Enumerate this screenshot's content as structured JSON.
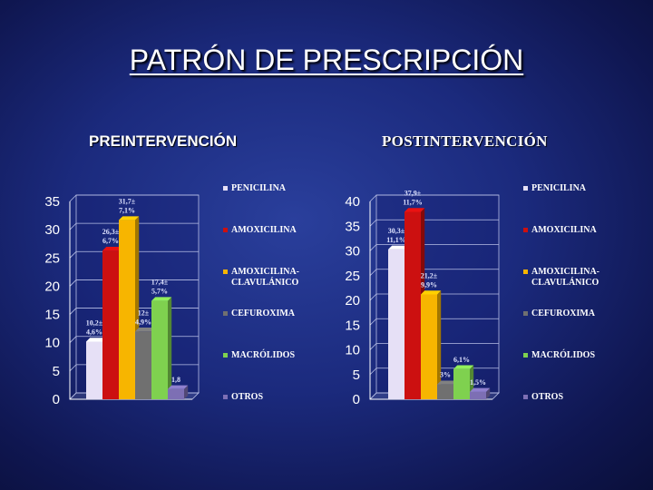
{
  "title": "PATRÓN DE PRESCRIPCIÓN",
  "colors": {
    "PENICILINA": "#e6e0f6",
    "AMOXICILINA": "#cc1010",
    "AMOXICILINA-CLAVULÁNICO": "#f7b500",
    "CEFUROXIMA": "#707070",
    "MACRÓLIDOS": "#7fd14f",
    "OTROS": "#7d6fb4"
  },
  "chart_data": [
    {
      "type": "bar",
      "title": "PREINTERVENCIÓN",
      "categories": [
        "PENICILINA",
        "AMOXICILINA",
        "AMOXICILINA-CLAVULÁNICO",
        "CEFUROXIMA",
        "MACRÓLIDOS",
        "OTROS"
      ],
      "legend": [
        "PENICILINA",
        "AMOXICILINA",
        "AMOXICILINA-\nCLAVULÁNICO",
        "CEFUROXIMA",
        "MACRÓLIDOS",
        "OTROS"
      ],
      "values": [
        10.2,
        26.3,
        31.7,
        12,
        17.4,
        1.8
      ],
      "data_labels": [
        [
          "10,2±",
          "4,6%"
        ],
        [
          "26,3±",
          "6,7%"
        ],
        [
          "31,7±",
          "7,1%"
        ],
        [
          "12±",
          "4,9%"
        ],
        [
          "17,4±",
          "5,7%"
        ],
        [
          "1,8"
        ]
      ],
      "yticks": [
        "0",
        "5",
        "10",
        "15",
        "20",
        "25",
        "30",
        "35"
      ],
      "ylim": [
        0,
        35
      ],
      "legend_position": "right"
    },
    {
      "type": "bar",
      "title": "POSTINTERVENCIÓN",
      "categories": [
        "PENICILINA",
        "AMOXICILINA",
        "AMOXICILINA-CLAVULÁNICO",
        "CEFUROXIMA",
        "MACRÓLIDOS",
        "OTROS"
      ],
      "legend": [
        "PENICILINA",
        "AMOXICILINA",
        "AMOXICILINA-\nCLAVULÁNICO",
        "CEFUROXIMA",
        "MACRÓLIDOS",
        "OTROS"
      ],
      "values": [
        30.3,
        37.9,
        21.2,
        3,
        6.1,
        1.5
      ],
      "data_labels": [
        [
          "30,3±",
          "11,1%"
        ],
        [
          "37,9±",
          "11,7%"
        ],
        [
          "21,2±",
          "9,9%"
        ],
        [
          "3%"
        ],
        [
          "6,1%"
        ],
        [
          "1,5%"
        ]
      ],
      "yticks": [
        "0",
        "5",
        "10",
        "15",
        "20",
        "25",
        "30",
        "35",
        "40"
      ],
      "ylim": [
        0,
        40
      ],
      "legend_position": "right"
    }
  ]
}
